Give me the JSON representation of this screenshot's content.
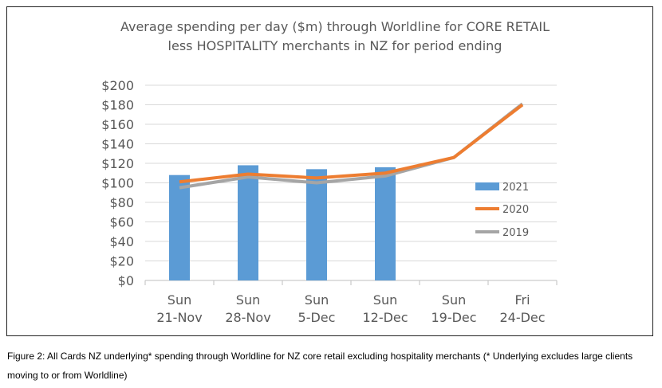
{
  "chart_data": {
    "type": "bar+line",
    "title": "Average spending per day ($m) through Worldline for CORE RETAIL less HOSPITALITY merchants in NZ for period ending",
    "categories": [
      [
        "Sun",
        "21-Nov"
      ],
      [
        "Sun",
        "28-Nov"
      ],
      [
        "Sun",
        "5-Dec"
      ],
      [
        "Sun",
        "12-Dec"
      ],
      [
        "Sun",
        "19-Dec"
      ],
      [
        "Fri",
        "24-Dec"
      ]
    ],
    "ylim": [
      0,
      200
    ],
    "yticks": [
      0,
      20,
      40,
      60,
      80,
      100,
      120,
      140,
      160,
      180,
      200
    ],
    "ytick_labels": [
      "$0",
      "$20",
      "$40",
      "$60",
      "$80",
      "$100",
      "$120",
      "$140",
      "$160",
      "$180",
      "$200"
    ],
    "grid": true,
    "legend_position": "right",
    "series": [
      {
        "name": "2021",
        "kind": "bar",
        "color": "#5b9bd5",
        "values": [
          108,
          118,
          114,
          116,
          null,
          null
        ]
      },
      {
        "name": "2020",
        "kind": "line",
        "color": "#ed7d31",
        "values": [
          101,
          109,
          105,
          110,
          126,
          180
        ]
      },
      {
        "name": "2019",
        "kind": "line",
        "color": "#a5a5a5",
        "values": [
          95,
          106,
          100,
          107,
          126,
          181
        ]
      }
    ]
  },
  "caption": "Figure 2: All Cards NZ underlying* spending through Worldline for NZ core retail excluding hospitality merchants (* Underlying excludes large clients moving to or from Worldline)"
}
